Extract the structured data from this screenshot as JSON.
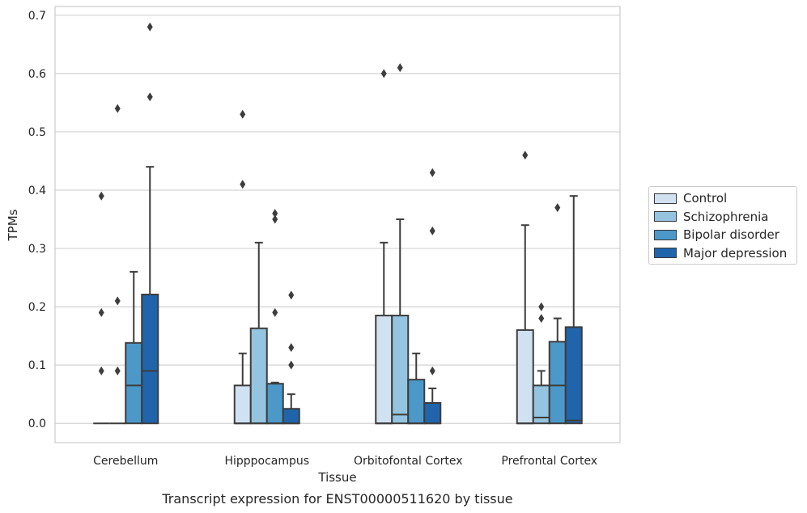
{
  "chart_data": {
    "type": "box",
    "title": "Transcript expression for ENST00000511620 by tissue",
    "xlabel": "Tissue",
    "ylabel": "TPMs",
    "ylim": [
      -0.033,
      0.715
    ],
    "yticks": [
      0.0,
      0.1,
      0.2,
      0.3,
      0.4,
      0.5,
      0.6,
      0.7
    ],
    "ytick_labels": [
      "0.0",
      "0.1",
      "0.2",
      "0.3",
      "0.4",
      "0.5",
      "0.6",
      "0.7"
    ],
    "grid": "horizontal",
    "legend_position": "right",
    "categories": [
      "Cerebellum",
      "Hipppocampus",
      "Orbitofontal Cortex",
      "Prefrontal Cortex"
    ],
    "series": [
      {
        "name": "Control",
        "color": "#d0e1f2",
        "boxes": [
          {
            "q1": 0,
            "median": 0,
            "q3": 0,
            "whisker_low": 0,
            "whisker_high": 0,
            "outliers": [
              0.09,
              0.19,
              0.39
            ]
          },
          {
            "q1": 0,
            "median": 0,
            "q3": 0.065,
            "whisker_low": 0,
            "whisker_high": 0.12,
            "outliers": [
              0.41,
              0.53
            ]
          },
          {
            "q1": 0,
            "median": 0,
            "q3": 0.185,
            "whisker_low": 0,
            "whisker_high": 0.31,
            "outliers": [
              0.6
            ]
          },
          {
            "q1": 0,
            "median": 0,
            "q3": 0.16,
            "whisker_low": 0,
            "whisker_high": 0.34,
            "outliers": [
              0.46
            ]
          }
        ]
      },
      {
        "name": "Schizophrenia",
        "color": "#94c4df",
        "boxes": [
          {
            "q1": 0,
            "median": 0,
            "q3": 0,
            "whisker_low": 0,
            "whisker_high": 0,
            "outliers": [
              0.09,
              0.21,
              0.54
            ]
          },
          {
            "q1": 0,
            "median": 0,
            "q3": 0.163,
            "whisker_low": 0,
            "whisker_high": 0.31,
            "outliers": []
          },
          {
            "q1": 0,
            "median": 0.015,
            "q3": 0.185,
            "whisker_low": 0,
            "whisker_high": 0.35,
            "outliers": [
              0.61
            ]
          },
          {
            "q1": 0,
            "median": 0.01,
            "q3": 0.065,
            "whisker_low": 0,
            "whisker_high": 0.09,
            "outliers": [
              0.18,
              0.2
            ]
          }
        ]
      },
      {
        "name": "Bipolar disorder",
        "color": "#4b98c9",
        "boxes": [
          {
            "q1": 0,
            "median": 0.065,
            "q3": 0.138,
            "whisker_low": 0,
            "whisker_high": 0.26,
            "outliers": []
          },
          {
            "q1": 0,
            "median": 0,
            "q3": 0.068,
            "whisker_low": 0,
            "whisker_high": 0.07,
            "outliers": [
              0.19,
              0.35,
              0.36
            ]
          },
          {
            "q1": 0,
            "median": 0,
            "q3": 0.075,
            "whisker_low": 0,
            "whisker_high": 0.12,
            "outliers": []
          },
          {
            "q1": 0,
            "median": 0.065,
            "q3": 0.14,
            "whisker_low": 0,
            "whisker_high": 0.18,
            "outliers": [
              0.37
            ]
          }
        ]
      },
      {
        "name": "Major depression",
        "color": "#2064ab",
        "boxes": [
          {
            "q1": 0,
            "median": 0.09,
            "q3": 0.221,
            "whisker_low": 0,
            "whisker_high": 0.44,
            "outliers": [
              0.56,
              0.68
            ]
          },
          {
            "q1": 0,
            "median": 0,
            "q3": 0.025,
            "whisker_low": 0,
            "whisker_high": 0.05,
            "outliers": [
              0.1,
              0.13,
              0.22
            ]
          },
          {
            "q1": 0,
            "median": 0,
            "q3": 0.035,
            "whisker_low": 0,
            "whisker_high": 0.06,
            "outliers": [
              0.09,
              0.33,
              0.43
            ]
          },
          {
            "q1": 0,
            "median": 0.005,
            "q3": 0.165,
            "whisker_low": 0,
            "whisker_high": 0.39,
            "outliers": []
          }
        ]
      }
    ]
  }
}
